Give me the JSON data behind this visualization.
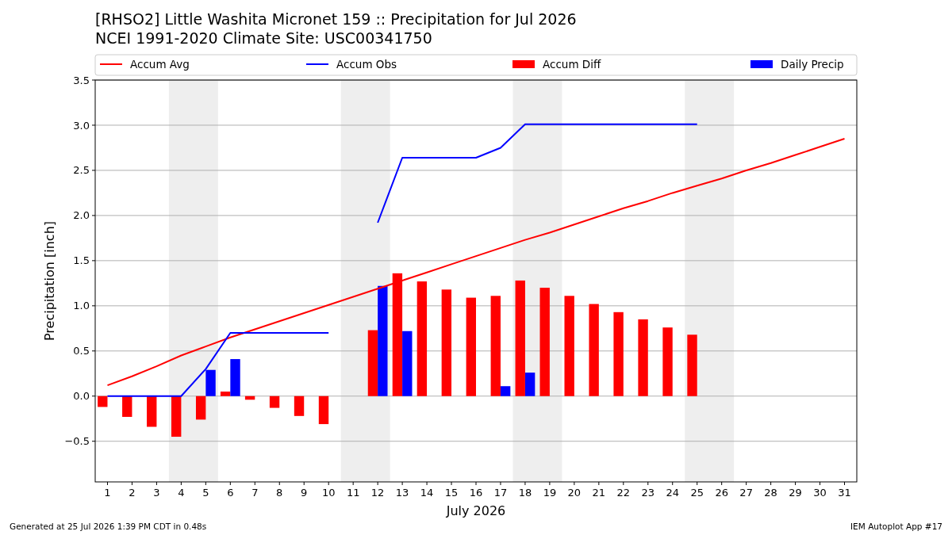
{
  "chart_data": {
    "type": "bar",
    "title": "[RHSO2] Little Washita Micronet 159 :: Precipitation for Jul 2026",
    "subtitle": "NCEI 1991-2020 Climate Site: USC00341750",
    "xlabel": "July 2026",
    "ylabel": "Precipitation [inch]",
    "x": [
      1,
      2,
      3,
      4,
      5,
      6,
      7,
      8,
      9,
      10,
      11,
      12,
      13,
      14,
      15,
      16,
      17,
      18,
      19,
      20,
      21,
      22,
      23,
      24,
      25,
      26,
      27,
      28,
      29,
      30,
      31
    ],
    "xlim": [
      0.5,
      31.5
    ],
    "xticks": [
      1,
      2,
      3,
      4,
      5,
      6,
      7,
      8,
      9,
      10,
      11,
      12,
      13,
      14,
      15,
      16,
      17,
      18,
      19,
      20,
      21,
      22,
      23,
      24,
      25,
      26,
      27,
      28,
      29,
      30,
      31
    ],
    "ylim": [
      -0.95,
      3.5
    ],
    "yticks": [
      {
        "value": -0.5,
        "label": "−0.5"
      },
      {
        "value": 0,
        "label": "0.0"
      },
      {
        "value": 0.5,
        "label": "0.5"
      },
      {
        "value": 1,
        "label": "1.0"
      },
      {
        "value": 1.5,
        "label": "1.5"
      },
      {
        "value": 2,
        "label": "2.0"
      },
      {
        "value": 2.5,
        "label": "2.5"
      },
      {
        "value": 3,
        "label": "3.0"
      },
      {
        "value": 3.5,
        "label": "3.5"
      }
    ],
    "grid": "y",
    "legend": "top",
    "bands": [
      {
        "axis": "x",
        "from": 3.5,
        "to": 5.5,
        "color": "#eeeeee"
      },
      {
        "axis": "x",
        "from": 10.5,
        "to": 12.5,
        "color": "#eeeeee"
      },
      {
        "axis": "x",
        "from": 17.5,
        "to": 19.5,
        "color": "#eeeeee"
      },
      {
        "axis": "x",
        "from": 24.5,
        "to": 26.5,
        "color": "#eeeeee"
      }
    ],
    "series": [
      {
        "name": "Accum Avg",
        "type": "line",
        "color": "#ff0000",
        "values": [
          0.12,
          0.22,
          0.33,
          0.45,
          0.55,
          0.65,
          0.74,
          0.83,
          0.92,
          1.01,
          1.1,
          1.19,
          1.28,
          1.37,
          1.46,
          1.55,
          1.64,
          1.73,
          1.81,
          1.9,
          1.99,
          2.08,
          2.16,
          2.25,
          2.33,
          2.41,
          2.5,
          2.58,
          2.67,
          2.76,
          2.85
        ]
      },
      {
        "name": "Accum Obs",
        "type": "line",
        "color": "#0000ff",
        "values": [
          0,
          0,
          0,
          0,
          0.3,
          0.7,
          0.7,
          0.7,
          0.7,
          0.7,
          null,
          1.92,
          2.64,
          2.64,
          2.64,
          2.64,
          2.75,
          3.01,
          3.01,
          3.01,
          3.01,
          3.01,
          3.01,
          3.01,
          3.01,
          null,
          null,
          null,
          null,
          null,
          null
        ]
      },
      {
        "name": "Accum Diff",
        "color": "#ff0000",
        "values": [
          -0.12,
          -0.23,
          -0.34,
          -0.45,
          -0.26,
          0.05,
          -0.04,
          -0.13,
          -0.22,
          -0.31,
          null,
          0.73,
          1.36,
          1.27,
          1.18,
          1.09,
          1.11,
          1.28,
          1.2,
          1.11,
          1.02,
          0.93,
          0.85,
          0.76,
          0.68,
          null,
          null,
          null,
          null,
          null,
          null
        ]
      },
      {
        "name": "Daily Precip",
        "color": "#0000ff",
        "values": [
          null,
          null,
          null,
          null,
          0.29,
          0.41,
          null,
          null,
          null,
          null,
          null,
          1.22,
          0.72,
          null,
          null,
          null,
          0.11,
          0.26,
          null,
          null,
          null,
          null,
          null,
          null,
          null,
          null,
          null,
          null,
          null,
          null,
          null
        ]
      }
    ],
    "annotations": [
      "Generated at 25 Jul 2026 1:39 PM CDT in 0.48s",
      "IEM Autoplot App #17"
    ]
  }
}
